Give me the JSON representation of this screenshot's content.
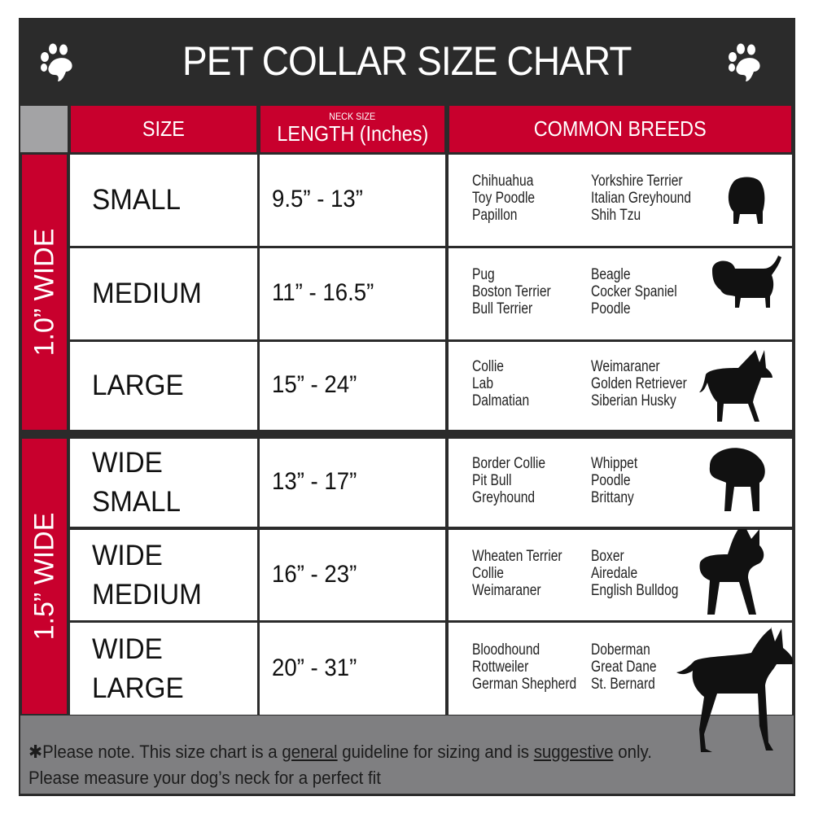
{
  "title": "PET COLLAR SIZE CHART",
  "icons": {
    "left": "paw-icon",
    "right": "paw-icon"
  },
  "colors": {
    "header_bg": "#2b2b2b",
    "accent_red": "#c8002d",
    "footer_gray": "#7f7f81"
  },
  "headers": {
    "size": "SIZE",
    "length_small": "NECK SIZE",
    "length": "LENGTH (Inches)",
    "breeds": "COMMON BREEDS"
  },
  "groups": [
    {
      "label": "1.0” WIDE"
    },
    {
      "label": "1.5” WIDE"
    }
  ],
  "rows": [
    {
      "size": [
        "SMALL"
      ],
      "length": "9.5” - 13”",
      "breeds_a": [
        "Chihuahua",
        "Toy Poodle",
        "Papillon"
      ],
      "breeds_b": [
        "Yorkshire Terrier",
        "Italian Greyhound",
        "Shih Tzu"
      ],
      "icon": "small-dog-silhouette-icon"
    },
    {
      "size": [
        "MEDIUM"
      ],
      "length": "11” - 16.5”",
      "breeds_a": [
        "Pug",
        "Boston Terrier",
        "Bull Terrier"
      ],
      "breeds_b": [
        "Beagle",
        "Cocker Spaniel",
        "Poodle"
      ],
      "icon": "medium-dog-silhouette-icon"
    },
    {
      "size": [
        "LARGE"
      ],
      "length": "15” - 24”",
      "breeds_a": [
        "Collie",
        "Lab",
        "Dalmatian"
      ],
      "breeds_b": [
        "Weimaraner",
        "Golden Retriever",
        "Siberian Husky"
      ],
      "icon": "large-dog-silhouette-icon"
    },
    {
      "size": [
        "WIDE",
        "SMALL"
      ],
      "length": "13” - 17”",
      "breeds_a": [
        "Border Collie",
        "Pit Bull",
        "Greyhound"
      ],
      "breeds_b": [
        "Whippet",
        "Poodle",
        "Brittany"
      ],
      "icon": "bulldog-silhouette-icon"
    },
    {
      "size": [
        "WIDE",
        "MEDIUM"
      ],
      "length": "16” - 23”",
      "breeds_a": [
        "Wheaten Terrier",
        "Collie",
        "Weimaraner"
      ],
      "breeds_b": [
        "Boxer",
        "Airedale",
        "English Bulldog"
      ],
      "icon": "pitbull-silhouette-icon"
    },
    {
      "size": [
        "WIDE",
        "LARGE"
      ],
      "length": "20” - 31”",
      "breeds_a": [
        "Bloodhound",
        "Rottweiler",
        "German Shepherd"
      ],
      "breeds_b": [
        "Doberman",
        "Great Dane",
        "St. Bernard"
      ],
      "icon": "doberman-silhouette-icon"
    }
  ],
  "footer": {
    "p1": "✱Please note. This size chart is a ",
    "u1": "general",
    "p2": " guideline for sizing and is ",
    "u2": "suggestive",
    "p3": " only.",
    "line2": "Please measure your dog’s neck for a perfect fit"
  }
}
